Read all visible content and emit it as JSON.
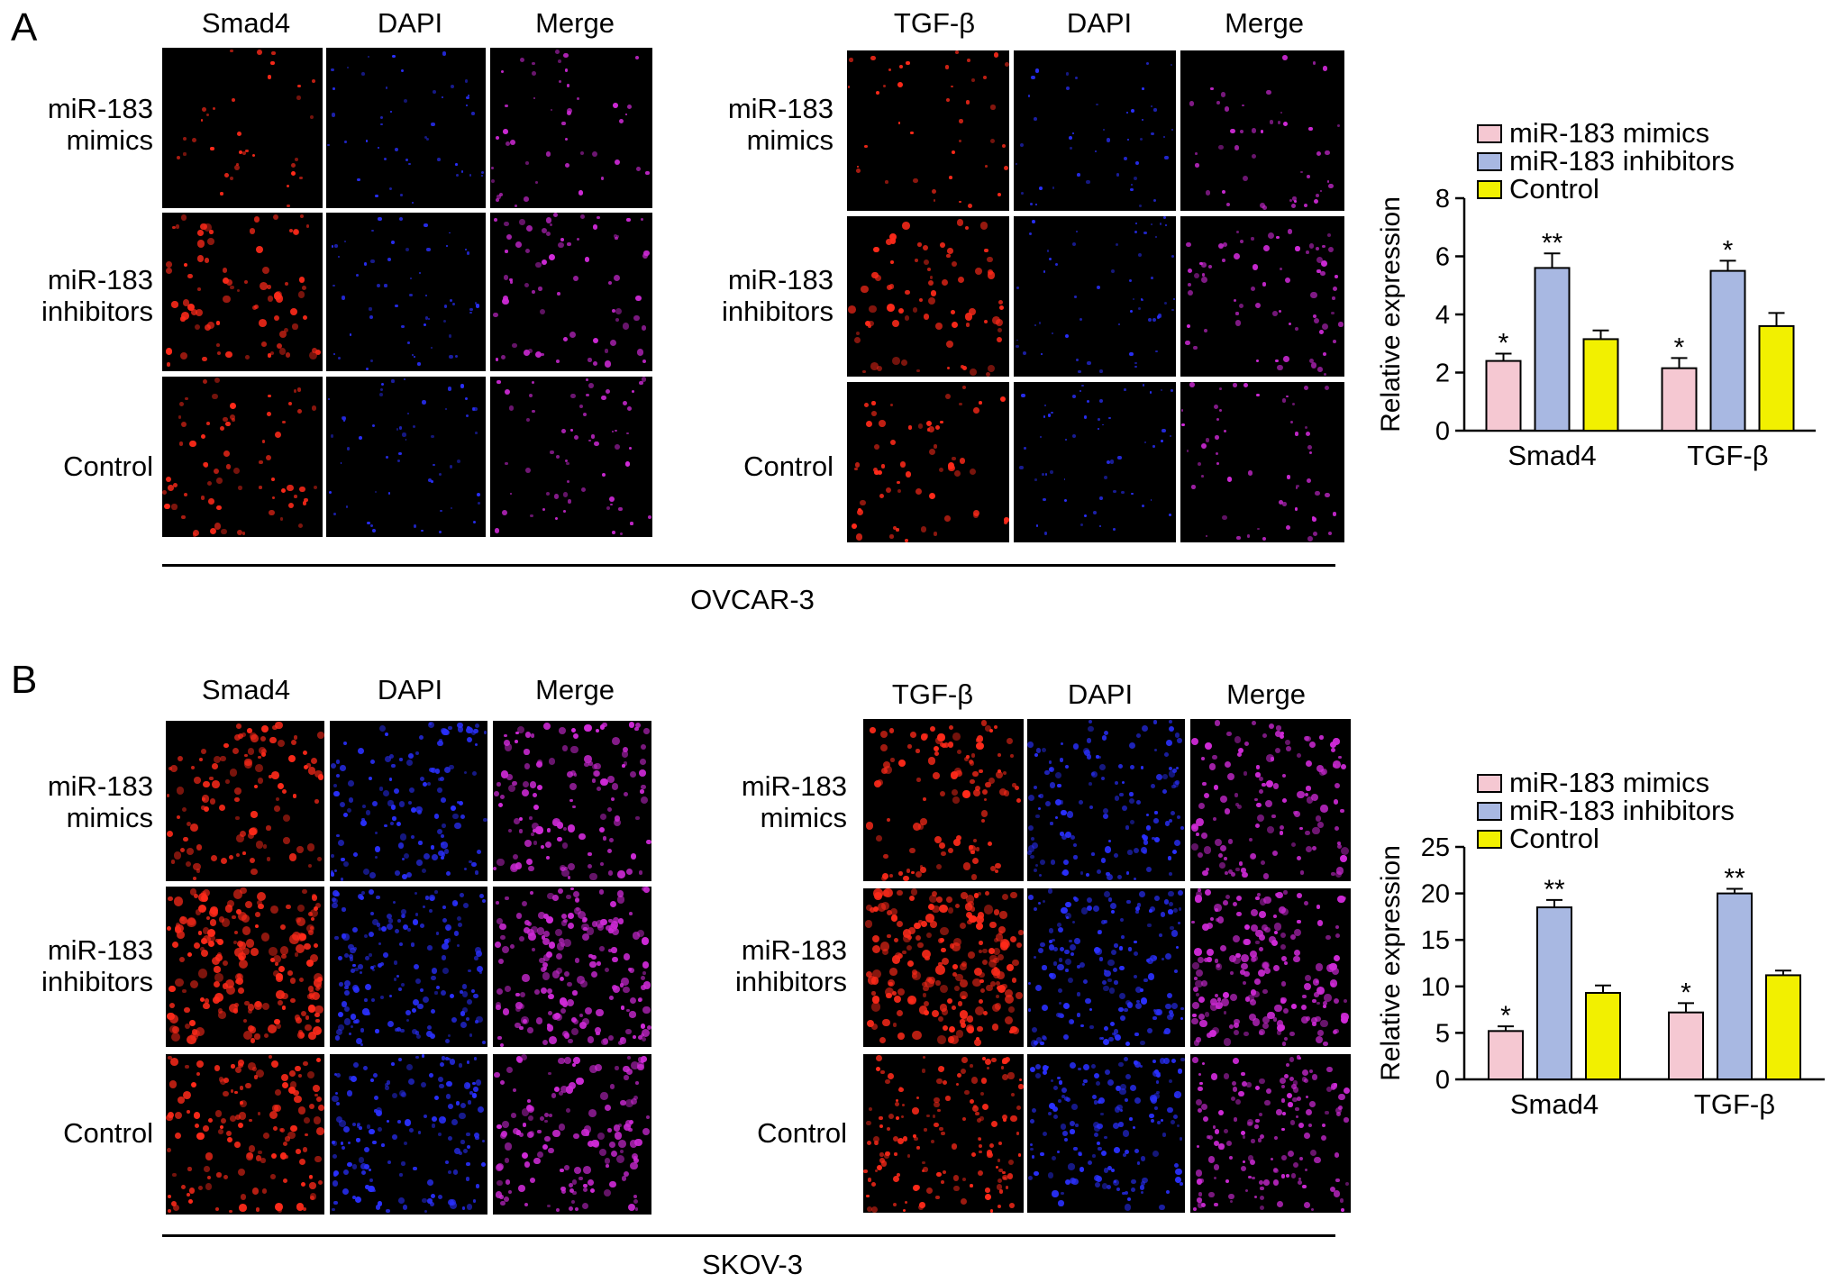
{
  "panels": [
    {
      "letter": "A",
      "cell_line": "OVCAR-3",
      "left_group": {
        "columns": [
          "Smad4",
          "DAPI",
          "Merge"
        ]
      },
      "right_group": {
        "columns": [
          "TGF-β",
          "DAPI",
          "Merge"
        ]
      },
      "rows": [
        {
          "line1": "miR-183",
          "line2": "mimics"
        },
        {
          "line1": "miR-183",
          "line2": "inhibitors"
        },
        {
          "line1": "Control",
          "line2": ""
        }
      ]
    },
    {
      "letter": "B",
      "cell_line": "SKOV-3",
      "left_group": {
        "columns": [
          "Smad4",
          "DAPI",
          "Merge"
        ]
      },
      "right_group": {
        "columns": [
          "TGF-β",
          "DAPI",
          "Merge"
        ]
      },
      "rows": [
        {
          "line1": "miR-183",
          "line2": "mimics"
        },
        {
          "line1": "miR-183",
          "line2": "inhibitors"
        },
        {
          "line1": "Control",
          "line2": ""
        }
      ]
    }
  ],
  "colors": {
    "mimics": "#f5c8d2",
    "inhibitors": "#a8b8e2",
    "control": "#f2f000",
    "stain_red": "#ff2a1a",
    "stain_blue": "#2a30ff",
    "stain_merge": "#d02ad8"
  },
  "chart_data": [
    {
      "type": "bar",
      "categories": [
        "Smad4",
        "TGF-β"
      ],
      "ylabel": "Relative expression",
      "ylim": [
        0,
        8
      ],
      "yticks": [
        0,
        2,
        4,
        6,
        8
      ],
      "legend_position": "top",
      "series": [
        {
          "name": "miR-183 mimics",
          "values": [
            2.4,
            2.15
          ],
          "errors": [
            0.25,
            0.35
          ],
          "sig": [
            "*",
            "*"
          ]
        },
        {
          "name": "miR-183 inhibitors",
          "values": [
            5.6,
            5.5
          ],
          "errors": [
            0.5,
            0.35
          ],
          "sig": [
            "**",
            "*"
          ]
        },
        {
          "name": "Control",
          "values": [
            3.15,
            3.6
          ],
          "errors": [
            0.3,
            0.45
          ],
          "sig": [
            "",
            ""
          ]
        }
      ]
    },
    {
      "type": "bar",
      "categories": [
        "Smad4",
        "TGF-β"
      ],
      "ylabel": "Relative expression",
      "ylim": [
        0,
        25
      ],
      "yticks": [
        0,
        5,
        10,
        15,
        20,
        25
      ],
      "legend_position": "top",
      "series": [
        {
          "name": "miR-183 mimics",
          "values": [
            5.2,
            7.2
          ],
          "errors": [
            0.5,
            1.0
          ],
          "sig": [
            "*",
            "*"
          ]
        },
        {
          "name": "miR-183 inhibitors",
          "values": [
            18.5,
            20.0
          ],
          "errors": [
            0.8,
            0.5
          ],
          "sig": [
            "**",
            "**"
          ]
        },
        {
          "name": "Control",
          "values": [
            9.3,
            11.2
          ],
          "errors": [
            0.8,
            0.5
          ],
          "sig": [
            "",
            ""
          ]
        }
      ]
    }
  ]
}
